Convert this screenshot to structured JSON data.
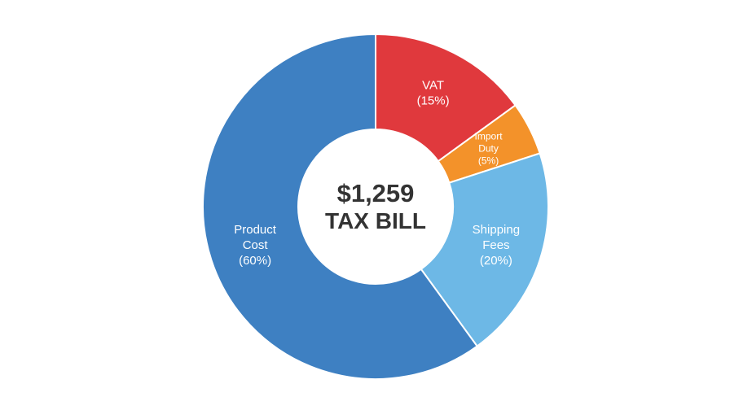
{
  "chart_data": {
    "type": "donut",
    "categories": [
      "VAT",
      "Import Duty",
      "Shipping Fees",
      "Product Cost"
    ],
    "values": [
      15,
      5,
      20,
      60
    ],
    "value_labels": [
      "(15%)",
      "(5%)",
      "(20%)",
      "(60%)"
    ],
    "colors": [
      "#e0393d",
      "#f3922a",
      "#6db8e6",
      "#3e80c2"
    ],
    "center_value": "$1,259",
    "center_label": "TAX BILL"
  }
}
